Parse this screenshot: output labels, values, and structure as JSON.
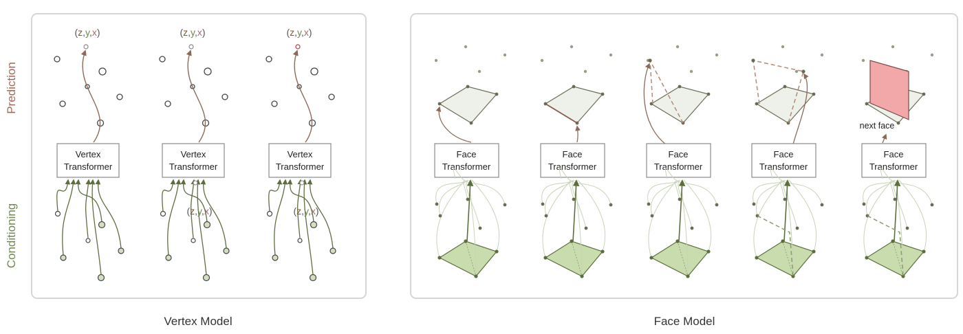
{
  "side_labels": {
    "prediction": "Prediction",
    "conditioning": "Conditioning"
  },
  "colors": {
    "prediction_label": "#a8664e",
    "conditioning_label": "#6f8a4c",
    "panel_border": "#d6d6d6",
    "arrow_brown": "#8c6a5a",
    "arrow_green": "#5d6e3e",
    "thin_green": "#c8d3b8",
    "face_fill_green": "#c9dcae",
    "face_fill_grey": "#eef0ea",
    "face_fill_red": "#f2a8a8",
    "coord_z": "#7a5a2c",
    "coord_y": "#6f8a4c",
    "coord_x": "#9c6f6f"
  },
  "vertex_model": {
    "caption": "Vertex Model",
    "box_label_line1": "Vertex",
    "box_label_line2": "Transformer",
    "coordinate_parts": [
      "(",
      "z",
      ",",
      "y",
      ",",
      "x",
      ")"
    ],
    "columns": 3
  },
  "face_model": {
    "caption": "Face Model",
    "box_label_line1": "Face",
    "box_label_line2": "Transformer",
    "next_face_label": "next face",
    "columns": 5
  }
}
